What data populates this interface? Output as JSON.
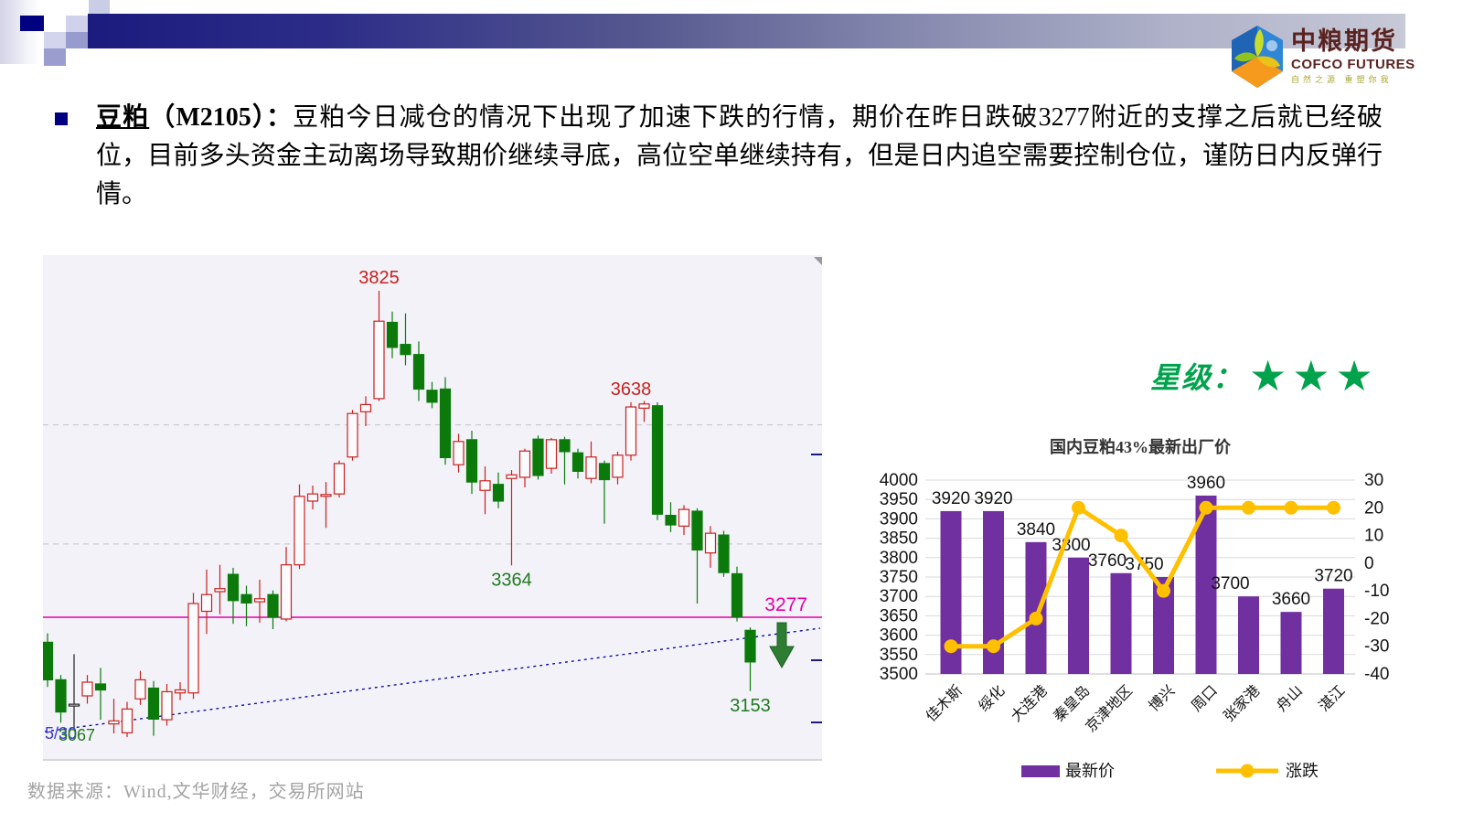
{
  "logo": {
    "title": "中粮期货",
    "subtitle": "COFCO FUTURES",
    "tagline": "自然之源 重塑你我"
  },
  "commentary": {
    "title_underline": "豆粕",
    "title_rest": "（M2105）：",
    "body": "豆粕今日减仓的情况下出现了加速下跌的行情，期价在昨日跌破3277附近的支撑之后就已经破位，目前多头资金主动离场导致期价继续寻底，高位空单继续持有，但是日内追空需要控制仓位，谨防日内反弹行情。"
  },
  "rating": {
    "label": "星级：",
    "stars": "★★★",
    "color": "#00a24b"
  },
  "footer": {
    "source": "数据来源：Wind,文华财经，交易所网站"
  },
  "colors": {
    "candle_up": "#c9211e",
    "candle_down": "#0b7a0b",
    "support": "#e400a6",
    "trendline": "#0000a0",
    "bar": "#7030a0",
    "line": "#ffc000",
    "header_navy": "#1b1b7e"
  },
  "chart_data": [
    {
      "type": "candlestick",
      "title": "",
      "support_line": {
        "price": 3277,
        "label": "3277"
      },
      "gridlines": [
        3600,
        3400
      ],
      "annotations": [
        {
          "text": "3825",
          "index": 25,
          "pos": "above",
          "color": "#c9211e"
        },
        {
          "text": "3638",
          "index": 44,
          "pos": "above",
          "color": "#c9211e"
        },
        {
          "text": "3364",
          "index": 35,
          "pos": "below",
          "color": "#217a21"
        },
        {
          "text": "3153",
          "index": 53,
          "pos": "below",
          "color": "#217a21"
        }
      ],
      "corner_texts": [
        {
          "text": "5/30",
          "color": "#3b3bd0"
        },
        {
          "text": "3067",
          "color": "#217a21"
        }
      ],
      "black_indices": [
        2
      ],
      "ylim": [
        3036,
        3885
      ],
      "candles": [
        [
          3235,
          3250,
          3160,
          3172
        ],
        [
          3172,
          3180,
          3100,
          3118
        ],
        [
          3128,
          3215,
          3090,
          3131
        ],
        [
          3145,
          3180,
          3132,
          3168
        ],
        [
          3165,
          3192,
          3105,
          3155
        ],
        [
          3098,
          3140,
          3082,
          3103
        ],
        [
          3083,
          3135,
          3076,
          3123
        ],
        [
          3140,
          3187,
          3130,
          3172
        ],
        [
          3158,
          3170,
          3078,
          3106
        ],
        [
          3105,
          3165,
          3095,
          3152
        ],
        [
          3150,
          3168,
          3138,
          3155
        ],
        [
          3150,
          3318,
          3140,
          3300
        ],
        [
          3287,
          3357,
          3249,
          3315
        ],
        [
          3320,
          3365,
          3282,
          3325
        ],
        [
          3349,
          3360,
          3266,
          3305
        ],
        [
          3315,
          3330,
          3262,
          3301
        ],
        [
          3303,
          3340,
          3268,
          3308
        ],
        [
          3315,
          3322,
          3257,
          3277
        ],
        [
          3274,
          3395,
          3270,
          3365
        ],
        [
          3365,
          3500,
          3358,
          3480
        ],
        [
          3472,
          3498,
          3458,
          3484
        ],
        [
          3480,
          3504,
          3427,
          3483
        ],
        [
          3484,
          3540,
          3478,
          3535
        ],
        [
          3546,
          3625,
          3540,
          3619
        ],
        [
          3622,
          3648,
          3598,
          3634
        ],
        [
          3644,
          3825,
          3640,
          3774
        ],
        [
          3772,
          3790,
          3712,
          3730
        ],
        [
          3735,
          3787,
          3700,
          3718
        ],
        [
          3718,
          3740,
          3640,
          3660
        ],
        [
          3658,
          3672,
          3628,
          3638
        ],
        [
          3660,
          3680,
          3533,
          3545
        ],
        [
          3533,
          3585,
          3520,
          3572
        ],
        [
          3575,
          3590,
          3484,
          3504
        ],
        [
          3490,
          3530,
          3450,
          3506
        ],
        [
          3500,
          3520,
          3460,
          3472
        ],
        [
          3510,
          3524,
          3364,
          3516
        ],
        [
          3512,
          3560,
          3495,
          3556
        ],
        [
          3576,
          3582,
          3508,
          3515
        ],
        [
          3527,
          3578,
          3518,
          3575
        ],
        [
          3575,
          3580,
          3500,
          3555
        ],
        [
          3553,
          3560,
          3510,
          3522
        ],
        [
          3510,
          3572,
          3502,
          3546
        ],
        [
          3535,
          3540,
          3434,
          3508
        ],
        [
          3512,
          3555,
          3500,
          3549
        ],
        [
          3549,
          3638,
          3540,
          3630
        ],
        [
          3628,
          3640,
          3605,
          3635
        ],
        [
          3632,
          3638,
          3440,
          3450
        ],
        [
          3448,
          3470,
          3420,
          3432
        ],
        [
          3430,
          3465,
          3415,
          3458
        ],
        [
          3455,
          3460,
          3300,
          3390
        ],
        [
          3385,
          3430,
          3360,
          3418
        ],
        [
          3415,
          3422,
          3345,
          3352
        ],
        [
          3350,
          3362,
          3270,
          3278
        ],
        [
          3255,
          3260,
          3153,
          3202
        ]
      ]
    },
    {
      "type": "bar+line",
      "title": "国内豆粕43%最新出厂价",
      "categories": [
        "佳木斯",
        "绥化",
        "大连港",
        "秦皇岛",
        "京津地区",
        "博兴",
        "周口",
        "张家港",
        "舟山",
        "湛江"
      ],
      "series": [
        {
          "name": "最新价",
          "type": "bar",
          "color": "#7030a0",
          "values": [
            3920,
            3920,
            3840,
            3800,
            3760,
            3750,
            3960,
            3700,
            3660,
            3720
          ],
          "label_dx": [
            0,
            0,
            0,
            -8,
            -15,
            -21,
            0,
            -20,
            0,
            0
          ]
        },
        {
          "name": "涨跌",
          "type": "line",
          "color": "#ffc000",
          "values": [
            -30,
            -30,
            -20,
            20,
            10,
            -10,
            20,
            20,
            20,
            20
          ]
        }
      ],
      "left_axis": {
        "min": 3500,
        "max": 4000,
        "step": 50
      },
      "right_axis": {
        "min": -40,
        "max": 30,
        "step": 10
      },
      "grid": true,
      "legend_position": "bottom"
    }
  ]
}
